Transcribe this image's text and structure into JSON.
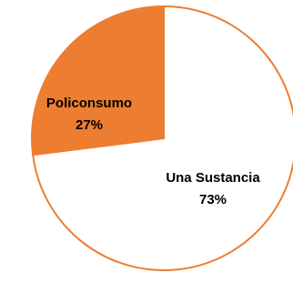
{
  "chart_data": {
    "type": "pie",
    "title": "",
    "slices": [
      {
        "label": "Una Sustancia",
        "value": 73,
        "display": "73%",
        "color": "#ffffff",
        "label_color": "#000000"
      },
      {
        "label": "Policonsumo",
        "value": 27,
        "display": "27%",
        "color": "#ed7d31",
        "label_color": "#000000"
      }
    ],
    "border_color": "#ed7d31",
    "start": "top, clockwise"
  }
}
